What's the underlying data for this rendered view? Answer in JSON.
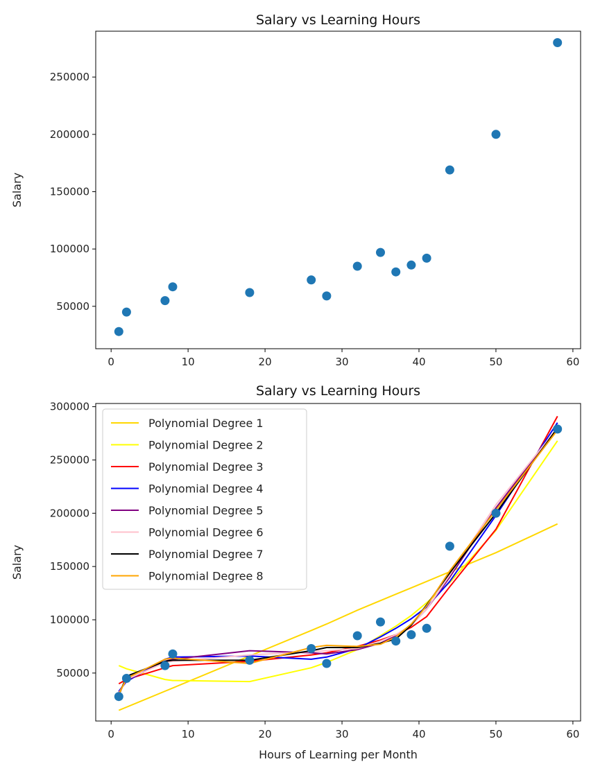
{
  "chart_data": [
    {
      "type": "scatter",
      "title": "Salary vs Learning Hours",
      "xlabel": "",
      "ylabel": "Salary",
      "xlim": [
        -2,
        61
      ],
      "ylim": [
        13000,
        290000
      ],
      "xticks": [
        0,
        10,
        20,
        30,
        40,
        50,
        60
      ],
      "yticks": [
        50000,
        100000,
        150000,
        200000,
        250000
      ],
      "grid": false,
      "point_color": "#1f77b4",
      "points": {
        "x": [
          1,
          2,
          7,
          8,
          18,
          26,
          28,
          32,
          35,
          37,
          39,
          41,
          44,
          50,
          58
        ],
        "y": [
          28000,
          45000,
          55000,
          67000,
          62000,
          73000,
          59000,
          85000,
          97000,
          80000,
          86000,
          92000,
          169000,
          200000,
          280000
        ]
      }
    },
    {
      "type": "line",
      "title": "Salary vs Learning Hours",
      "xlabel": "Hours of Learning per Month",
      "ylabel": "Salary",
      "xlim": [
        -2,
        61
      ],
      "ylim": [
        5000,
        303000
      ],
      "xticks": [
        0,
        10,
        20,
        30,
        40,
        50,
        60
      ],
      "yticks": [
        50000,
        100000,
        150000,
        200000,
        250000,
        300000
      ],
      "grid": false,
      "legend_position": "upper-left",
      "point_color": "#1f77b4",
      "points": {
        "x": [
          1,
          2,
          7,
          8,
          18,
          26,
          28,
          32,
          35,
          37,
          39,
          41,
          44,
          50,
          58
        ],
        "y": [
          28000,
          45000,
          57000,
          68000,
          62000,
          73000,
          59000,
          85000,
          98000,
          80000,
          86000,
          92000,
          169000,
          200000,
          279000
        ]
      },
      "x": [
        1,
        2,
        7,
        8,
        18,
        26,
        28,
        32,
        35,
        37,
        39,
        41,
        44,
        50,
        58
      ],
      "series": [
        {
          "name": "Polynomial Degree 1",
          "color": "#ffd700",
          "values": [
            15000,
            18000,
            33000,
            36000,
            66000,
            90000,
            96000,
            109000,
            118000,
            124000,
            130000,
            136000,
            145000,
            163000,
            190000
          ]
        },
        {
          "name": "Polynomial Degree 2",
          "color": "#ffff00",
          "values": [
            57000,
            54000,
            44000,
            43000,
            42000,
            55000,
            60000,
            72000,
            85000,
            94000,
            104000,
            116000,
            135000,
            184000,
            268000
          ]
        },
        {
          "name": "Polynomial Degree 3",
          "color": "#ff0000",
          "values": [
            40000,
            44000,
            55000,
            57000,
            61000,
            67000,
            69000,
            75000,
            81000,
            86000,
            93000,
            103000,
            131000,
            185000,
            291000
          ]
        },
        {
          "name": "Polynomial Degree 4",
          "color": "#0000ff",
          "values": [
            33000,
            42000,
            63000,
            65000,
            66000,
            63000,
            65000,
            73000,
            84000,
            92000,
            101000,
            112000,
            136000,
            198000,
            285000
          ]
        },
        {
          "name": "Polynomial Degree 5",
          "color": "#800080",
          "values": [
            32000,
            43000,
            61000,
            63000,
            71000,
            69000,
            68000,
            72000,
            78000,
            85000,
            95000,
            110000,
            140000,
            205000,
            280000
          ]
        },
        {
          "name": "Polynomial Degree 6",
          "color": "#ffc0cb",
          "values": [
            31000,
            44000,
            60000,
            61000,
            67000,
            70000,
            71000,
            73000,
            80000,
            86000,
            95000,
            110000,
            142000,
            208000,
            280000
          ]
        },
        {
          "name": "Polynomial Degree 7",
          "color": "#000000",
          "values": [
            29000,
            47000,
            61000,
            62000,
            62000,
            71000,
            74000,
            74000,
            78000,
            82000,
            95000,
            114000,
            144000,
            200000,
            280000
          ]
        },
        {
          "name": "Polynomial Degree 8",
          "color": "#ffa500",
          "values": [
            30000,
            45000,
            63000,
            64000,
            59000,
            74000,
            76000,
            75000,
            77000,
            84000,
            96000,
            113000,
            146000,
            203000,
            278000
          ]
        }
      ]
    }
  ]
}
